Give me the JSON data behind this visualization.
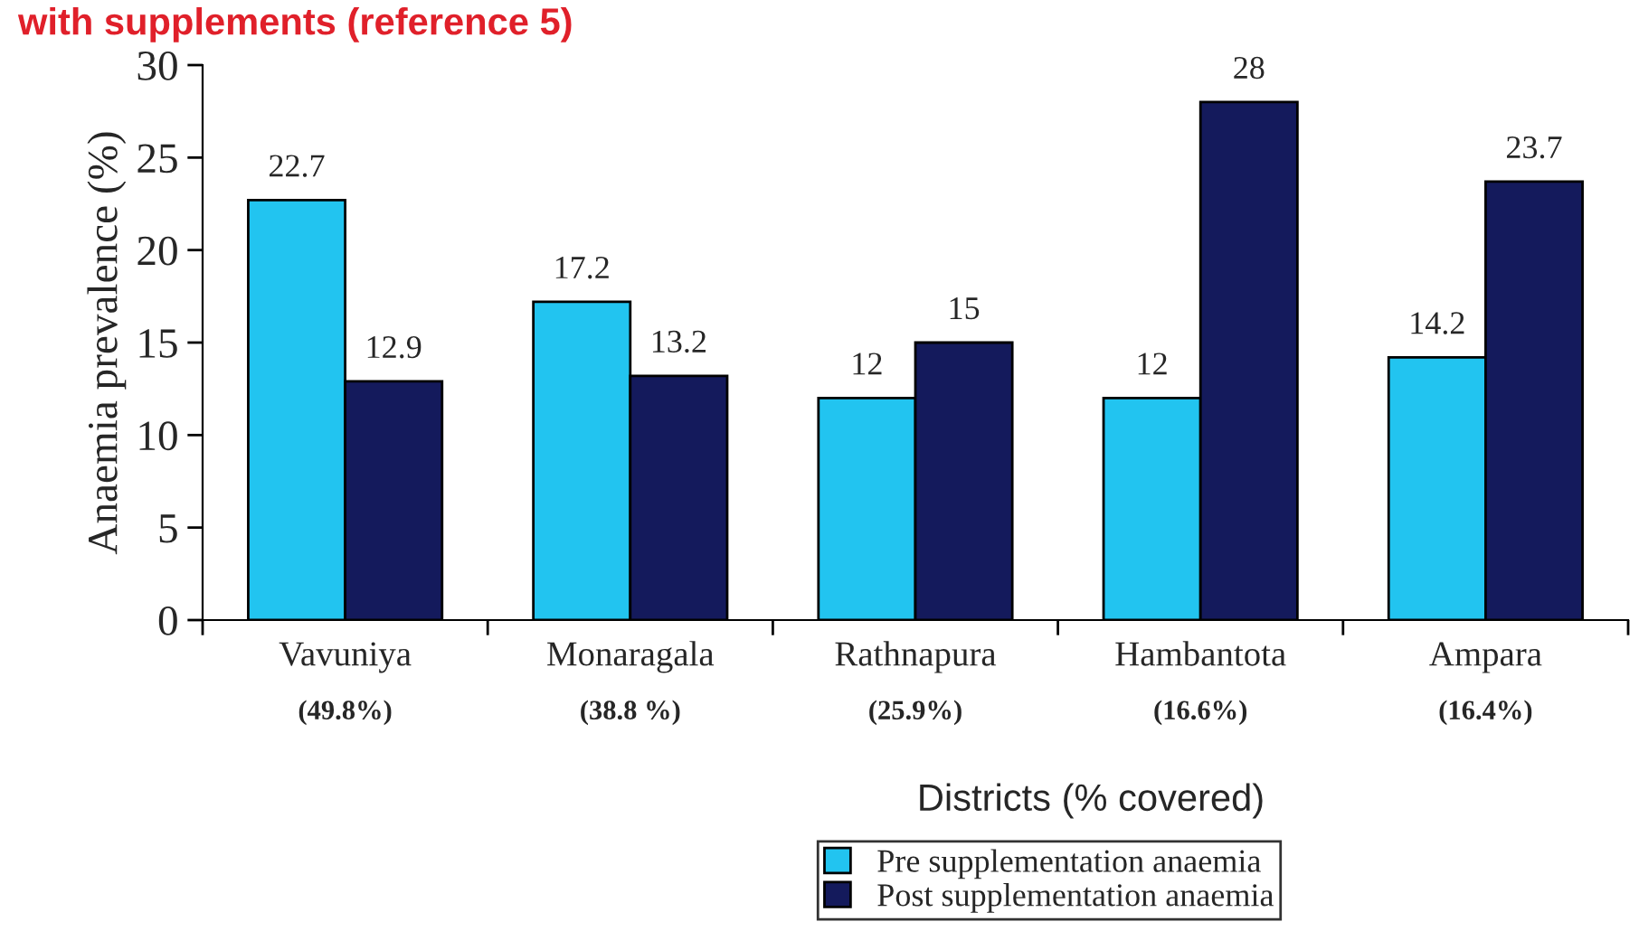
{
  "chart_data": {
    "type": "bar",
    "title": "with supplements (reference 5)",
    "xlabel": "Districts (% covered)",
    "ylabel": "Anaemia prevalence (%)",
    "categories": [
      "Vavuniya\n(49.8%)",
      "Monaragala\n(38.8 %)",
      "Rathnapura\n(25.9%)",
      "Hambantota\n(16.6%)",
      "Ampara\n(16.4%)"
    ],
    "series": [
      {
        "name": "Pre supplementation anaemia",
        "color": "#22c4f0",
        "values": [
          22.7,
          17.2,
          12,
          12,
          14.2
        ]
      },
      {
        "name": "Post supplementation anaemia",
        "color": "#141a5c",
        "values": [
          12.9,
          13.2,
          15,
          28,
          23.7
        ]
      }
    ],
    "ylim": [
      0,
      30
    ],
    "yticks": [
      0,
      5,
      10,
      15,
      20,
      25,
      30
    ],
    "data_labels": true,
    "grid": false,
    "legend": "bottom"
  }
}
